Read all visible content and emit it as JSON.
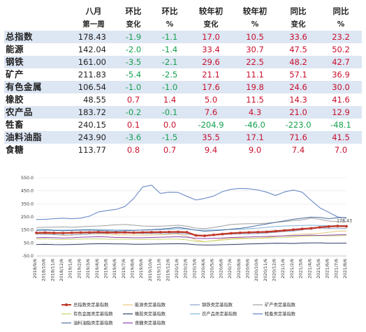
{
  "table": {
    "header_top": [
      "",
      "八月",
      "环比",
      "环比",
      "较年初",
      "较年初",
      "同比",
      "同比"
    ],
    "header_sub": [
      "",
      "第一周",
      "变化",
      "%",
      "变化",
      "%",
      "变化",
      "%"
    ],
    "rows": [
      {
        "name": "总指数",
        "week": "178.43",
        "mom": "-1.9",
        "mom_pct": "-1.1",
        "ytd": "17.0",
        "ytd_pct": "10.5",
        "yoy": "33.6",
        "yoy_pct": "23.2"
      },
      {
        "name": "能源",
        "week": "142.04",
        "mom": "-2.0",
        "mom_pct": "-1.4",
        "ytd": "33.4",
        "ytd_pct": "30.7",
        "yoy": "47.5",
        "yoy_pct": "50.2"
      },
      {
        "name": "钢铁",
        "week": "161.00",
        "mom": "-3.5",
        "mom_pct": "-2.1",
        "ytd": "29.6",
        "ytd_pct": "22.5",
        "yoy": "48.2",
        "yoy_pct": "42.7"
      },
      {
        "name": "矿产",
        "week": "211.83",
        "mom": "-5.4",
        "mom_pct": "-2.5",
        "ytd": "21.1",
        "ytd_pct": "11.1",
        "yoy": "57.1",
        "yoy_pct": "36.9"
      },
      {
        "name": "有色金属",
        "week": "106.54",
        "mom": "-1.0",
        "mom_pct": "-1.0",
        "ytd": "17.6",
        "ytd_pct": "19.8",
        "yoy": "24.6",
        "yoy_pct": "30.0"
      },
      {
        "name": "橡胶",
        "week": "48.55",
        "mom": "0.7",
        "mom_pct": "1.4",
        "ytd": "5.0",
        "ytd_pct": "11.5",
        "yoy": "14.3",
        "yoy_pct": "41.6"
      },
      {
        "name": "农产品",
        "week": "183.72",
        "mom": "-0.2",
        "mom_pct": "-0.1",
        "ytd": "7.6",
        "ytd_pct": "4.3",
        "yoy": "21.0",
        "yoy_pct": "12.9"
      },
      {
        "name": "牲畜",
        "week": "240.15",
        "mom": "0.1",
        "mom_pct": "0.0",
        "ytd": "-204.9",
        "ytd_pct": "-46.0",
        "yoy": "-223.0",
        "yoy_pct": "-48.1"
      },
      {
        "name": "油料油脂",
        "week": "243.90",
        "mom": "-3.6",
        "mom_pct": "-1.5",
        "ytd": "35.5",
        "ytd_pct": "17.1",
        "yoy": "71.6",
        "yoy_pct": "41.5"
      },
      {
        "name": "食糖",
        "week": "113.77",
        "mom": "0.8",
        "mom_pct": "0.7",
        "ytd": "9.4",
        "ytd_pct": "9.0",
        "yoy": "7.4",
        "yoy_pct": "7.0"
      }
    ]
  },
  "colors": {
    "positive": "#c8102e",
    "negative": "#14a050"
  },
  "chart_data": {
    "type": "line",
    "ylim": [
      -50,
      550
    ],
    "yticks": [
      -50.0,
      50.0,
      150.0,
      250.0,
      350.0,
      450.0,
      550.0
    ],
    "x": [
      "2018/9/6",
      "2018/10/6",
      "2018/11/6",
      "2018/12/6",
      "2019/1/6",
      "2019/2/6",
      "2019/3/6",
      "2019/4/6",
      "2019/5/6",
      "2019/6/6",
      "2019/7/6",
      "2019/8/6",
      "2019/9/6",
      "2019/10/6",
      "2019/11/6",
      "2019/12/6",
      "2020/1/6",
      "2020/2/6",
      "2020/3/6",
      "2020/4/6",
      "2020/5/6",
      "2020/6/6",
      "2020/7/6",
      "2020/8/6",
      "2020/9/6",
      "2020/10/6",
      "2020/11/6",
      "2020/12/6",
      "2021/1/6",
      "2021/2/6",
      "2021/3/6",
      "2021/4/6",
      "2021/5/6",
      "2021/6/6",
      "2021/7/6",
      "2021/8/6"
    ],
    "last_value_label": "178.43",
    "series": [
      {
        "name": "总指数类定基指数",
        "color": "#c0392b",
        "emphasis": true,
        "values": [
          128,
          129,
          127,
          126,
          128,
          130,
          131,
          133,
          131,
          130,
          131,
          129,
          131,
          132,
          133,
          134,
          135,
          132,
          108,
          105,
          112,
          118,
          124,
          128,
          131,
          133,
          135,
          140,
          146,
          152,
          158,
          162,
          170,
          176,
          180,
          178
        ]
      },
      {
        "name": "能源类定基指数",
        "color": "#e8c77a",
        "values": [
          118,
          122,
          116,
          108,
          110,
          114,
          118,
          120,
          118,
          112,
          113,
          110,
          110,
          111,
          112,
          116,
          117,
          103,
          72,
          60,
          68,
          80,
          86,
          88,
          86,
          88,
          92,
          100,
          106,
          112,
          118,
          120,
          124,
          132,
          140,
          142
        ]
      },
      {
        "name": "钢铁类定基指数",
        "color": "#8aa5c8",
        "values": [
          116,
          117,
          114,
          112,
          113,
          116,
          120,
          124,
          124,
          125,
          127,
          124,
          123,
          123,
          122,
          123,
          124,
          118,
          110,
          108,
          110,
          114,
          118,
          120,
          120,
          122,
          126,
          132,
          138,
          142,
          150,
          168,
          166,
          160,
          164,
          161
        ]
      },
      {
        "name": "矿产类定基指数",
        "color": "#9f9f9f",
        "values": [
          168,
          170,
          172,
          174,
          170,
          174,
          178,
          180,
          184,
          190,
          192,
          186,
          180,
          178,
          178,
          182,
          186,
          178,
          164,
          160,
          168,
          180,
          192,
          196,
          198,
          198,
          202,
          208,
          214,
          222,
          228,
          240,
          232,
          218,
          214,
          212
        ]
      },
      {
        "name": "有色金属类定基指数",
        "color": "#c7d86e",
        "values": [
          80,
          81,
          78,
          76,
          77,
          79,
          81,
          81,
          79,
          78,
          79,
          77,
          77,
          78,
          78,
          80,
          80,
          74,
          62,
          60,
          66,
          72,
          78,
          82,
          84,
          86,
          88,
          90,
          92,
          96,
          100,
          104,
          106,
          104,
          106,
          107
        ]
      },
      {
        "name": "橡胶类定基指数",
        "color": "#2c3e6b",
        "values": [
          38,
          39,
          37,
          36,
          38,
          40,
          42,
          44,
          44,
          42,
          42,
          40,
          40,
          41,
          42,
          43,
          44,
          42,
          36,
          34,
          34,
          36,
          38,
          40,
          42,
          44,
          46,
          48,
          47,
          46,
          49,
          50,
          50,
          48,
          48,
          48.5
        ]
      },
      {
        "name": "农产品类定基指数",
        "color": "#7fb3d5",
        "values": [
          152,
          154,
          150,
          148,
          150,
          152,
          154,
          154,
          152,
          150,
          150,
          148,
          148,
          150,
          152,
          156,
          160,
          158,
          150,
          148,
          150,
          152,
          154,
          156,
          160,
          164,
          170,
          176,
          180,
          182,
          184,
          186,
          184,
          182,
          184,
          184
        ]
      },
      {
        "name": "牲畜类定基指数",
        "color": "#5b7fc2",
        "values": [
          230,
          232,
          236,
          240,
          236,
          240,
          256,
          288,
          300,
          308,
          330,
          392,
          480,
          494,
          430,
          440,
          438,
          408,
          380,
          392,
          410,
          444,
          462,
          468,
          466,
          458,
          440,
          414,
          442,
          456,
          440,
          378,
          320,
          286,
          250,
          240
        ]
      },
      {
        "name": "油料油脂类定基指数",
        "color": "#4b6ea0",
        "values": [
          146,
          148,
          146,
          144,
          146,
          148,
          148,
          146,
          144,
          142,
          144,
          146,
          150,
          152,
          156,
          162,
          170,
          160,
          148,
          140,
          144,
          148,
          156,
          162,
          172,
          184,
          196,
          208,
          220,
          232,
          240,
          248,
          246,
          236,
          244,
          244
        ]
      },
      {
        "name": "食糖类定基指数",
        "color": "#8e44ad",
        "values": [
          90,
          92,
          90,
          88,
          90,
          94,
          96,
          98,
          96,
          92,
          92,
          90,
          90,
          92,
          94,
          96,
          98,
          94,
          86,
          84,
          86,
          88,
          92,
          94,
          96,
          98,
          100,
          102,
          104,
          106,
          108,
          110,
          108,
          110,
          112,
          114
        ]
      }
    ]
  }
}
